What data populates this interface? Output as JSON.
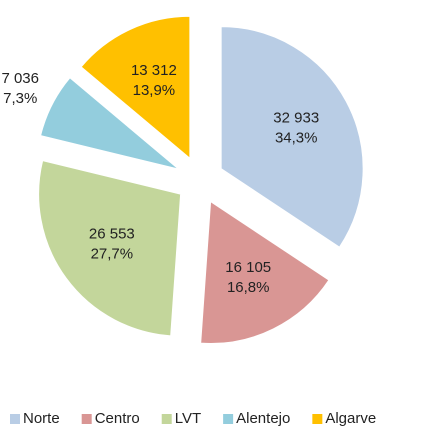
{
  "chart_data": {
    "type": "pie",
    "categories": [
      "Norte",
      "Centro",
      "LVT",
      "Alentejo",
      "Algarve"
    ],
    "values": [
      32933,
      16105,
      26553,
      7036,
      13312
    ],
    "value_labels": [
      "32 933",
      "16 105",
      "26 553",
      "7 036",
      "13 312"
    ],
    "percentages": [
      34.3,
      16.8,
      27.7,
      7.3,
      13.9
    ],
    "percentage_labels": [
      "34,3%",
      "16,8%",
      "27,7%",
      "7,3%",
      "13,9%"
    ],
    "colors": [
      "#b9cde5",
      "#d99694",
      "#c3d69b",
      "#93cddd",
      "#ffc000"
    ],
    "legend": "bottom"
  }
}
